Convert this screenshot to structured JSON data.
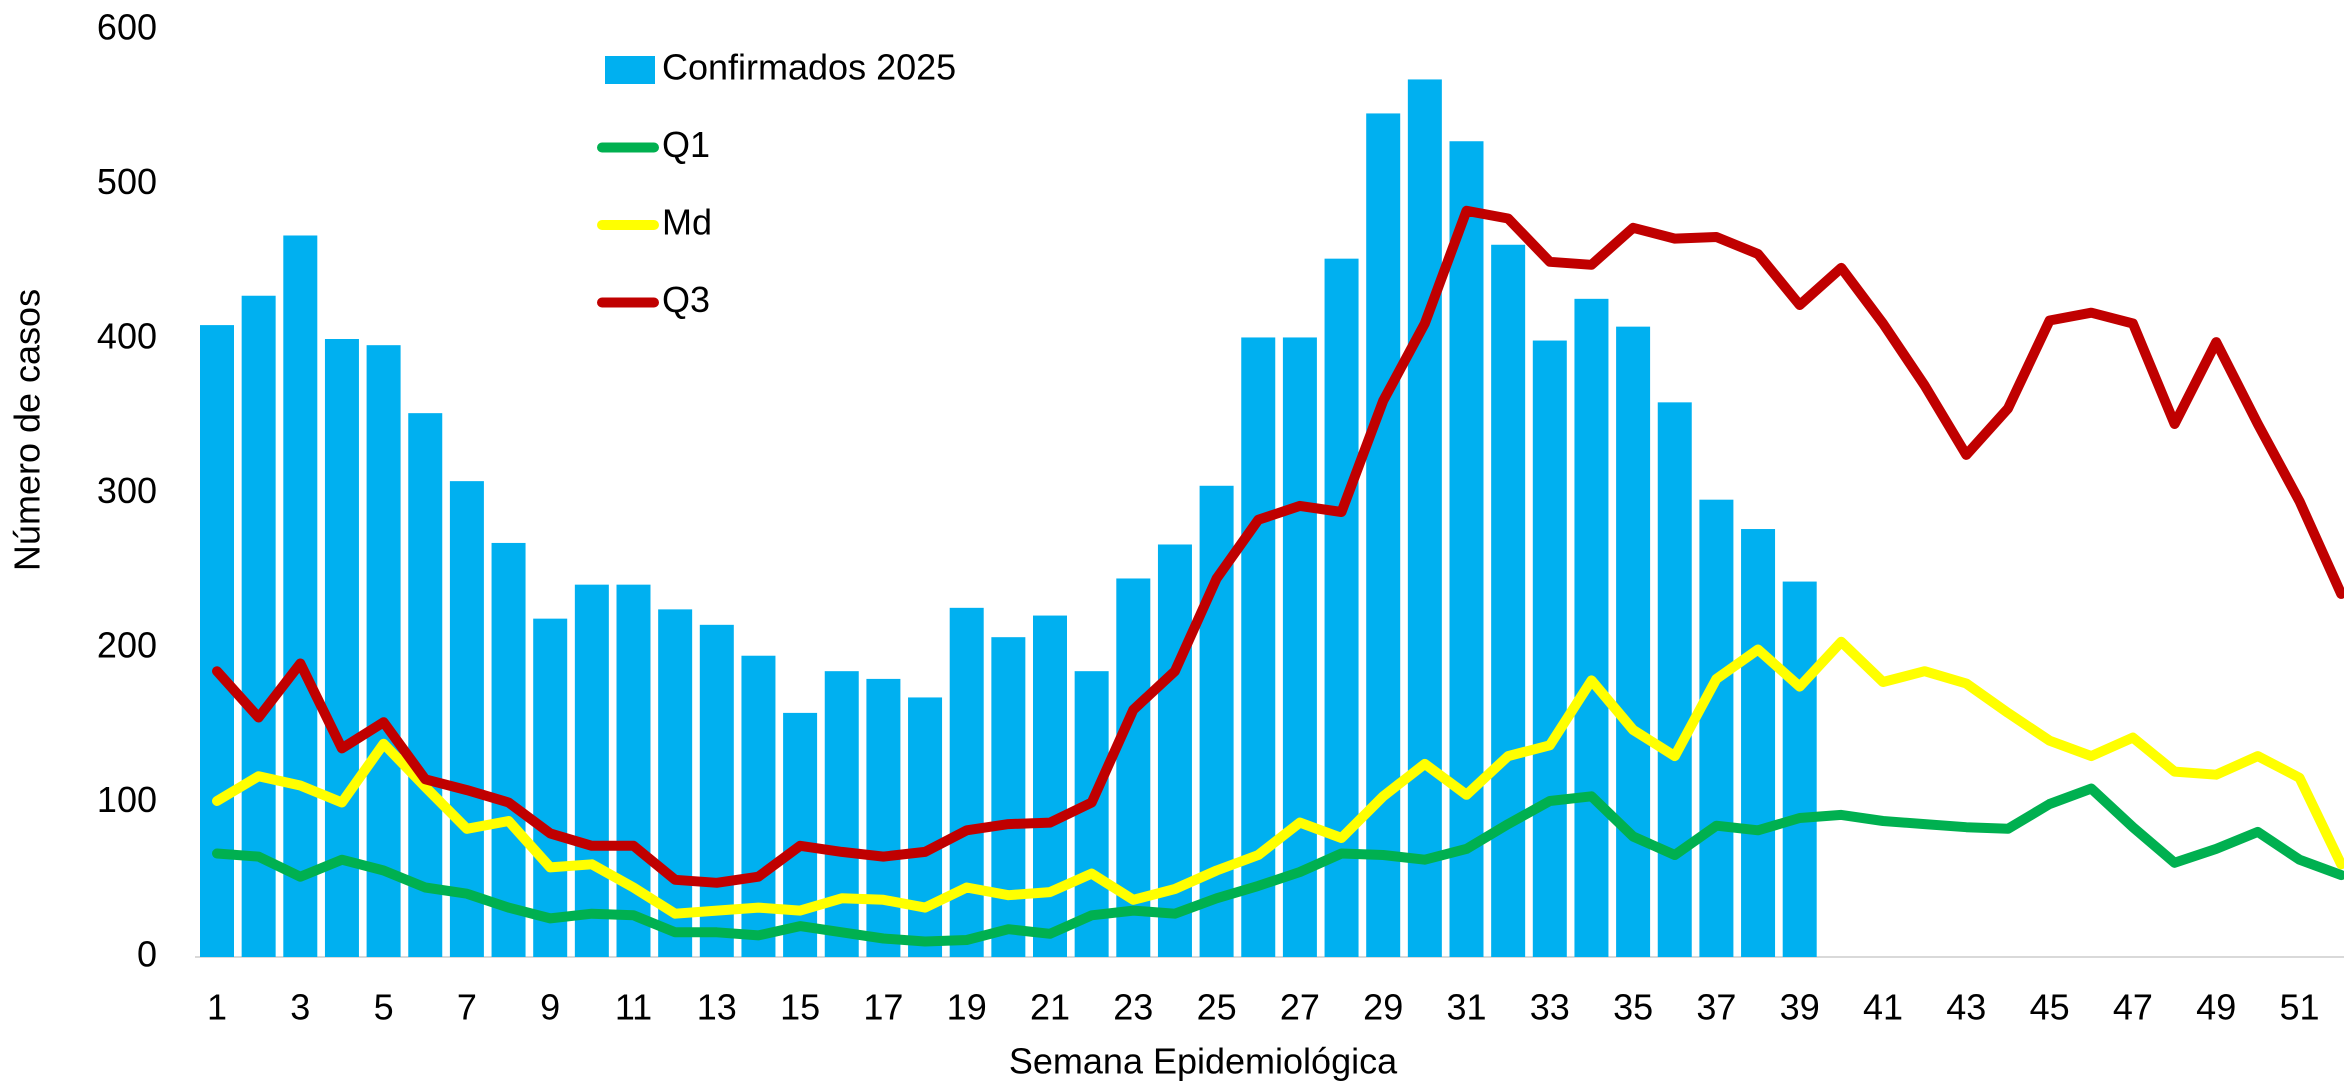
{
  "chart_data": {
    "type": "bar",
    "x_label": "Semana Epidemiológica",
    "y_label": "Número de casos",
    "categories": [
      1,
      null,
      3,
      null,
      5,
      null,
      7,
      null,
      9,
      null,
      11,
      null,
      13,
      null,
      15,
      null,
      17,
      null,
      19,
      null,
      21,
      null,
      23,
      null,
      25,
      null,
      27,
      null,
      29,
      null,
      31,
      null,
      33,
      null,
      35,
      null,
      37,
      null,
      39,
      null,
      41,
      null,
      43,
      null,
      45,
      null,
      47,
      null,
      49,
      null,
      51,
      null
    ],
    "ylim": [
      0,
      600
    ],
    "yticks": [
      0,
      100,
      200,
      300,
      400,
      500,
      600
    ],
    "legend": "upper-left",
    "series": [
      {
        "name": "Confirmados 2025",
        "type": "bar",
        "color": "#00b0f0",
        "values": [
          409,
          428,
          467,
          400,
          396,
          352,
          308,
          268,
          219,
          241,
          241,
          225,
          215,
          195,
          158,
          185,
          180,
          168,
          226,
          207,
          221,
          185,
          245,
          267,
          305,
          401,
          401,
          452,
          546,
          568,
          528,
          461,
          399,
          426,
          408,
          359,
          296,
          277,
          243,
          null,
          null,
          null,
          null,
          null,
          null,
          null,
          null,
          null,
          null,
          null,
          null,
          null
        ]
      },
      {
        "name": "Q1",
        "type": "line",
        "color": "#00b050",
        "values": [
          67,
          65,
          52,
          63,
          56,
          45,
          41,
          32,
          25,
          28,
          27,
          16,
          16,
          14,
          20,
          16,
          12,
          10,
          11,
          18,
          15,
          27,
          30,
          28,
          38,
          46,
          55,
          67,
          66,
          63,
          70,
          86,
          101,
          104,
          78,
          66,
          85,
          82,
          90,
          92,
          88,
          86,
          84,
          83,
          99,
          109,
          84,
          61,
          70,
          81,
          63,
          53
        ]
      },
      {
        "name": "Md",
        "type": "line",
        "color": "#ffff00",
        "values": [
          101,
          117,
          111,
          100,
          138,
          110,
          83,
          88,
          58,
          60,
          45,
          28,
          30,
          32,
          30,
          38,
          37,
          32,
          45,
          40,
          42,
          54,
          37,
          44,
          56,
          66,
          87,
          77,
          104,
          125,
          105,
          130,
          137,
          179,
          147,
          130,
          180,
          199,
          175,
          204,
          178,
          185,
          177,
          158,
          140,
          130,
          142,
          120,
          118,
          130,
          116,
          60
        ]
      },
      {
        "name": "Q3",
        "type": "line",
        "color": "#c00000",
        "values": [
          185,
          155,
          190,
          135,
          152,
          115,
          108,
          100,
          80,
          72,
          72,
          50,
          48,
          52,
          72,
          68,
          65,
          68,
          82,
          86,
          87,
          100,
          160,
          185,
          245,
          283,
          292,
          288,
          360,
          410,
          483,
          478,
          450,
          448,
          472,
          465,
          466,
          455,
          422,
          446,
          410,
          370,
          325,
          355,
          412,
          417,
          410,
          345,
          398,
          345,
          295,
          235
        ]
      }
    ]
  }
}
